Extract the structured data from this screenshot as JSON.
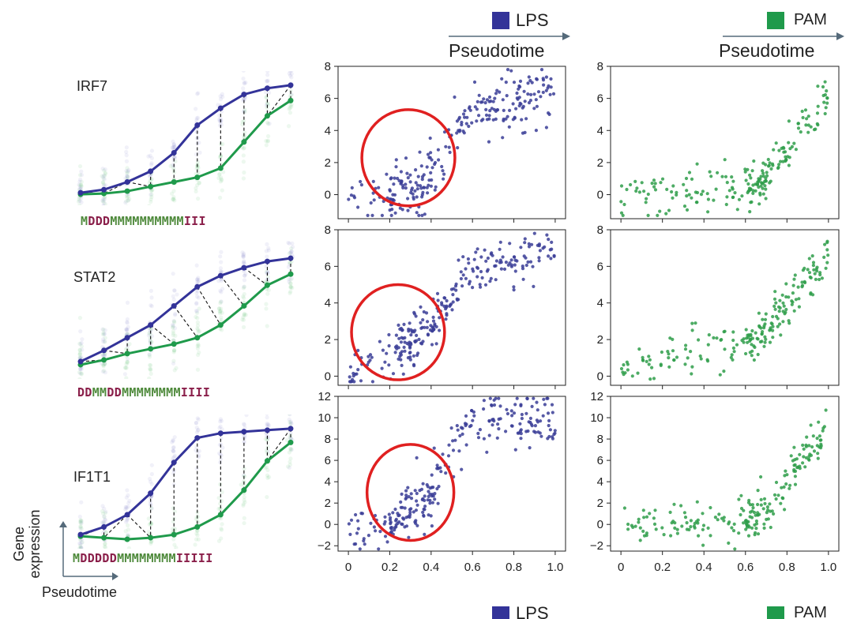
{
  "header": {
    "lps_label": "LPS",
    "pam_label": "PAM",
    "pseudotime_label": "Pseudotime",
    "lps_color": "#333399",
    "pam_color": "#1f9a4b"
  },
  "footer": {
    "lps_label": "LPS",
    "pam_label": "PAM"
  },
  "genes": [
    {
      "name": "IRF7",
      "alignment": "MDDDMMMMMMMMMMIII"
    },
    {
      "name": "STAT2",
      "alignment": "DDMMDDMMMMMMMMIIII"
    },
    {
      "name": "IF1T1",
      "alignment": "MDDDDDMMMMMMMMIIIII"
    }
  ],
  "axis_legend": {
    "y_label_line1": "Gene",
    "y_label_line2": "expression",
    "x_label": "Pseudotime"
  },
  "colors": {
    "match": "#4f8a3c",
    "other": "#8a1f4a",
    "circle": "#e02020",
    "lps_points": "#3a3d96",
    "pam_points": "#2f9e4a"
  },
  "chart_data": [
    {
      "type": "scatter",
      "row": 0,
      "condition": "LPS",
      "xlim": [
        -0.05,
        1.05
      ],
      "ylim": [
        -1.5,
        8
      ],
      "yticks": [
        0,
        2,
        4,
        6,
        8
      ],
      "xticks": [],
      "gene": "IRF7",
      "trend": [
        [
          0.0,
          -0.5
        ],
        [
          0.2,
          0.0
        ],
        [
          0.35,
          0.5
        ],
        [
          0.45,
          2.0
        ],
        [
          0.5,
          3.6
        ],
        [
          0.6,
          4.8
        ],
        [
          0.8,
          5.8
        ],
        [
          1.0,
          6.6
        ]
      ],
      "spread": 0.9,
      "n_points": 260,
      "highlight_circle": {
        "cx": 0.29,
        "cy": 2.3,
        "rx": 0.225,
        "ry": 3.0
      }
    },
    {
      "type": "scatter",
      "row": 0,
      "condition": "PAM",
      "xlim": [
        -0.05,
        1.05
      ],
      "ylim": [
        -1.5,
        8
      ],
      "yticks": [
        0,
        2,
        4,
        6,
        8
      ],
      "xticks": [],
      "gene": "IRF7",
      "trend": [
        [
          0.0,
          -0.3
        ],
        [
          0.2,
          0.0
        ],
        [
          0.4,
          0.2
        ],
        [
          0.6,
          0.5
        ],
        [
          0.7,
          0.8
        ],
        [
          0.75,
          2.2
        ],
        [
          0.85,
          4.0
        ],
        [
          1.0,
          6.0
        ]
      ],
      "spread": 0.7,
      "n_points": 200
    },
    {
      "type": "scatter",
      "row": 1,
      "condition": "LPS",
      "xlim": [
        -0.05,
        1.05
      ],
      "ylim": [
        -0.5,
        8
      ],
      "yticks": [
        0,
        2,
        4,
        6,
        8
      ],
      "xticks": [],
      "gene": "STAT2",
      "trend": [
        [
          0.0,
          0.2
        ],
        [
          0.15,
          1.0
        ],
        [
          0.3,
          2.0
        ],
        [
          0.4,
          2.6
        ],
        [
          0.5,
          4.5
        ],
        [
          0.6,
          5.6
        ],
        [
          0.8,
          6.4
        ],
        [
          1.0,
          7.0
        ]
      ],
      "spread": 0.7,
      "n_points": 260,
      "highlight_circle": {
        "cx": 0.24,
        "cy": 2.4,
        "rx": 0.225,
        "ry": 2.6
      }
    },
    {
      "type": "scatter",
      "row": 1,
      "condition": "PAM",
      "xlim": [
        -0.05,
        1.05
      ],
      "ylim": [
        -0.5,
        8
      ],
      "yticks": [
        0,
        2,
        4,
        6,
        8
      ],
      "xticks": [],
      "gene": "STAT2",
      "trend": [
        [
          0.0,
          0.2
        ],
        [
          0.2,
          1.0
        ],
        [
          0.4,
          1.8
        ],
        [
          0.6,
          2.0
        ],
        [
          0.7,
          2.5
        ],
        [
          0.8,
          4.0
        ],
        [
          0.9,
          5.3
        ],
        [
          1.0,
          6.5
        ]
      ],
      "spread": 0.6,
      "n_points": 200
    },
    {
      "type": "scatter",
      "row": 2,
      "condition": "LPS",
      "xlim": [
        -0.05,
        1.05
      ],
      "ylim": [
        -2.5,
        12
      ],
      "yticks": [
        -2,
        0,
        2,
        4,
        6,
        8,
        10,
        12
      ],
      "xticks": [
        0,
        0.2,
        0.4,
        0.6,
        0.8,
        1.0
      ],
      "xticklabels": [
        "0",
        "0.2",
        "0.4",
        "0.6",
        "0.8",
        "1.0"
      ],
      "gene": "IF1T1",
      "trend": [
        [
          0.0,
          -0.5
        ],
        [
          0.2,
          0.0
        ],
        [
          0.3,
          1.0
        ],
        [
          0.4,
          3.0
        ],
        [
          0.5,
          7.0
        ],
        [
          0.6,
          9.3
        ],
        [
          0.8,
          10.0
        ],
        [
          1.0,
          10.0
        ]
      ],
      "spread": 1.3,
      "n_points": 260,
      "highlight_circle": {
        "cx": 0.3,
        "cy": 3.0,
        "rx": 0.21,
        "ry": 4.5
      }
    },
    {
      "type": "scatter",
      "row": 2,
      "condition": "PAM",
      "xlim": [
        -0.05,
        1.05
      ],
      "ylim": [
        -2.5,
        12
      ],
      "yticks": [
        -2,
        0,
        2,
        4,
        6,
        8,
        10,
        12
      ],
      "xticks": [
        0,
        0.2,
        0.4,
        0.6,
        0.8,
        1.0
      ],
      "xticklabels": [
        "0",
        "0.2",
        "0.4",
        "0.6",
        "0.8",
        "1.0"
      ],
      "gene": "IF1T1",
      "trend": [
        [
          0.0,
          0.3
        ],
        [
          0.2,
          0.0
        ],
        [
          0.4,
          0.0
        ],
        [
          0.6,
          0.5
        ],
        [
          0.7,
          1.0
        ],
        [
          0.8,
          4.0
        ],
        [
          0.9,
          7.0
        ],
        [
          1.0,
          9.0
        ]
      ],
      "spread": 1.0,
      "n_points": 200
    }
  ],
  "trajectories": [
    {
      "lps": [
        0.2,
        0.4,
        0.9,
        1.6,
        2.8,
        4.6,
        5.7,
        6.6,
        7.0,
        7.2
      ],
      "pam": [
        0.1,
        0.15,
        0.3,
        0.6,
        0.9,
        1.2,
        1.8,
        3.5,
        5.2,
        6.2
      ]
    },
    {
      "lps": [
        0.5,
        1.2,
        2.0,
        2.8,
        4.0,
        5.2,
        5.9,
        6.4,
        6.8,
        7.0
      ],
      "pam": [
        0.3,
        0.6,
        1.0,
        1.3,
        1.6,
        2.0,
        2.8,
        4.0,
        5.3,
        6.0
      ]
    },
    {
      "lps": [
        0.3,
        0.8,
        1.6,
        3.0,
        5.0,
        6.6,
        6.9,
        7.0,
        7.1,
        7.2
      ],
      "pam": [
        0.2,
        0.1,
        0.0,
        0.1,
        0.3,
        0.8,
        1.6,
        3.2,
        5.1,
        6.3
      ]
    }
  ]
}
